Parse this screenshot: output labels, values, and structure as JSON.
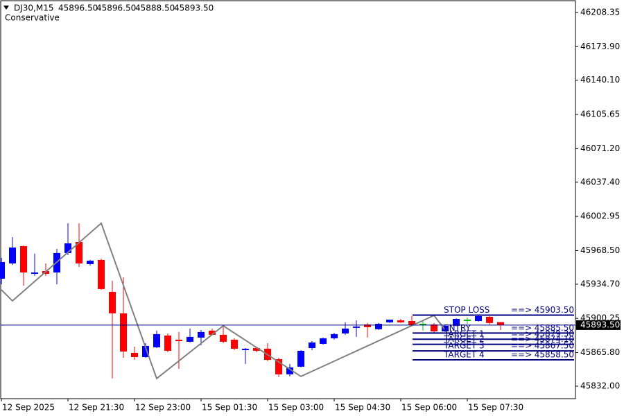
{
  "chart_data": {
    "type": "candlestick",
    "header": {
      "symbol": "DJ30,M15",
      "values": [
        "45896.50",
        "45896.50",
        "45888.50",
        "45893.50"
      ],
      "subtitle": "Conservative"
    },
    "categories": [
      "12 Sep 2025",
      null,
      null,
      null,
      null,
      null,
      "12 Sep 21:30",
      null,
      null,
      null,
      null,
      null,
      "12 Sep 23:00",
      null,
      null,
      null,
      null,
      null,
      "15 Sep 01:30",
      null,
      null,
      null,
      null,
      null,
      "15 Sep 03:00",
      null,
      null,
      null,
      null,
      null,
      "15 Sep 04:30",
      null,
      null,
      null,
      null,
      null,
      "15 Sep 06:00",
      null,
      null,
      null,
      null,
      null,
      "15 Sep 07:30",
      null,
      null,
      null
    ],
    "series": [
      {
        "open": [
          45940.2,
          45955.6,
          45973.0,
          45945.1,
          45947.9,
          45946.5,
          45966.1,
          45977.2,
          45954.9,
          45959.1,
          45926.9,
          45905.3,
          45865.5,
          45861.3,
          45871.1,
          45883.0,
          45878.8,
          45876.7,
          45880.9,
          45887.9,
          45883.7,
          45878.8,
          45868.3,
          45870.4,
          45869.7,
          45859.2,
          45843.9,
          45851.6,
          45870.4,
          45874.6,
          45880.2,
          45885.1,
          45890.7,
          45894.1,
          45889.3,
          45896.2,
          45898.3,
          45897.6,
          45894.1,
          45894.1,
          45887.2,
          45892.8,
          45898.3,
          45897.6,
          45901.8,
          45896.5
        ],
        "high": [
          45961.2,
          45982.1,
          45973.8,
          45965.4,
          45955.6,
          45970.2,
          45996.1,
          45996.1,
          45959.1,
          45960.5,
          45938.1,
          45941.6,
          45871.8,
          45875.3,
          45887.9,
          45885.1,
          45886.5,
          45890.0,
          45888.6,
          45890.0,
          45892.8,
          45880.2,
          45870.4,
          45871.8,
          45875.3,
          45860.6,
          45854.3,
          45868.3,
          45877.4,
          45880.9,
          45885.8,
          45896.3,
          45898.3,
          45895.6,
          45895.6,
          45899.0,
          45899.7,
          45902.5,
          45898.3,
          45895.6,
          45894.1,
          45900.4,
          45901.1,
          45903.2,
          45902.5,
          45896.5
        ],
        "low": [
          45934.6,
          45954.2,
          45933.2,
          45943.0,
          45943.0,
          45934.6,
          45964.0,
          45952.1,
          45953.5,
          45929.0,
          45839.7,
          45860.6,
          45858.5,
          45860.6,
          45870.4,
          45866.2,
          45849.5,
          45876.0,
          45873.2,
          45883.0,
          45875.3,
          45868.3,
          45854.3,
          45866.2,
          45857.1,
          45841.1,
          45841.8,
          45850.9,
          45868.3,
          45873.9,
          45878.8,
          45883.7,
          45881.6,
          45880.9,
          45888.6,
          45895.6,
          45895.6,
          45892.7,
          45887.9,
          45885.8,
          45886.5,
          45892.1,
          45894.8,
          45896.9,
          45894.1,
          45888.5
        ],
        "close": [
          45957.0,
          45971.6,
          45946.5,
          45946.5,
          45945.1,
          45966.1,
          45975.8,
          45955.6,
          45958.4,
          45929.8,
          45905.3,
          45866.9,
          45861.3,
          45872.5,
          45884.4,
          45867.6,
          45877.4,
          45881.6,
          45886.5,
          45883.7,
          45876.7,
          45869.7,
          45869.7,
          45867.6,
          45858.5,
          45843.9,
          45850.9,
          45867.6,
          45876.0,
          45880.2,
          45884.4,
          45890.0,
          45892.1,
          45891.4,
          45894.8,
          45899.0,
          45896.2,
          45893.4,
          45894.1,
          45887.2,
          45892.8,
          45899.7,
          45898.3,
          45902.5,
          45895.6,
          45893.5
        ]
      }
    ],
    "up_color": "#0000ff",
    "down_color": "#ff0000",
    "doji_color": "#00c000",
    "zigzag": {
      "color": "#808080",
      "x": [
        0,
        1,
        9,
        14,
        20,
        27,
        39,
        40
      ],
      "values": [
        45929.0,
        45917.9,
        45996.1,
        45839.7,
        45892.8,
        45841.8,
        45903.2,
        45888.6
      ]
    },
    "current_price": {
      "value": 45893.5,
      "label": "45893.50",
      "color": "#000080"
    },
    "level_arrow": "==>",
    "level_color": "#000080",
    "levels": [
      {
        "name": "STOP LOSS",
        "value": 45903.5,
        "value_label": "45903.50"
      },
      {
        "name": "ENTRY",
        "value": 45885.5,
        "value_label": "45885.50"
      },
      {
        "name": "TARGET 1",
        "value": 45879.3,
        "value_label": "45879.30"
      },
      {
        "name": "TARGET 2",
        "value": 45874.1,
        "value_label": "45874.10"
      },
      {
        "name": "TARGET 3",
        "value": 45867.5,
        "value_label": "45867.50"
      },
      {
        "name": "TARGET 4",
        "value": 45858.5,
        "value_label": "45858.50"
      }
    ],
    "ylim": [
      45819.4,
      46220.9
    ],
    "yticks": [
      {
        "value": 46208.35,
        "label": "46208.35"
      },
      {
        "value": 46173.9,
        "label": "46173.90"
      },
      {
        "value": 46140.1,
        "label": "46140.10"
      },
      {
        "value": 46105.65,
        "label": "46105.65"
      },
      {
        "value": 46071.2,
        "label": "46071.20"
      },
      {
        "value": 46037.4,
        "label": "46037.40"
      },
      {
        "value": 46002.95,
        "label": "46002.95"
      },
      {
        "value": 45968.5,
        "label": "45968.50"
      },
      {
        "value": 45934.7,
        "label": "45934.70"
      },
      {
        "value": 45900.25,
        "label": "45900.25"
      },
      {
        "value": 45865.8,
        "label": "45865.80"
      },
      {
        "value": 45832.0,
        "label": "45832.00"
      }
    ],
    "grid": false
  }
}
